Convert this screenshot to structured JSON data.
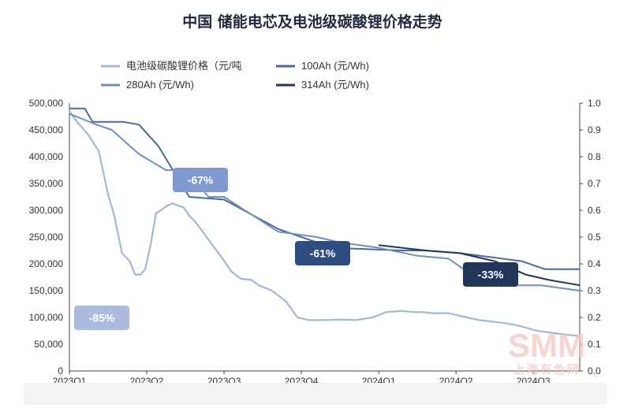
{
  "chart_data": {
    "type": "line",
    "title": "中国 储能电芯及电池级碳酸锂价格走势",
    "categories": [
      "2023Q1",
      "2023Q2",
      "2023Q3",
      "2023Q4",
      "2024Q1",
      "2024Q2",
      "2024Q3"
    ],
    "y_left": {
      "ticks": [
        "500,000",
        "450,000",
        "400,000",
        "350,000",
        "300,000",
        "250,000",
        "200,000",
        "150,000",
        "100,000",
        "50,000",
        "0"
      ],
      "ylim": [
        0,
        500000
      ]
    },
    "y_right": {
      "ticks": [
        "1.0",
        "0.9",
        "0.8",
        "0.7",
        "0.6",
        "0.5",
        "0.4",
        "0.3",
        "0.2",
        "0.1",
        "0.0"
      ],
      "ylim": [
        0,
        1.0
      ]
    },
    "legend_position": "top",
    "series": [
      {
        "name": "电池级碳酸锂价格（元/吨",
        "axis": "left",
        "color": "#a3b6d6",
        "x": [
          0,
          0.1,
          0.25,
          0.38,
          0.5,
          0.58,
          0.68,
          0.78,
          0.85,
          0.92,
          0.98,
          1.05,
          1.12,
          1.18,
          1.28,
          1.34,
          1.42,
          1.48,
          1.55,
          1.62,
          1.75,
          1.85,
          1.98,
          2.1,
          2.22,
          2.35,
          2.45,
          2.62,
          2.8,
          2.95,
          3.1,
          3.3,
          3.5,
          3.7,
          3.92,
          4.1,
          4.3,
          4.45,
          4.55,
          4.7,
          4.9,
          5.05,
          5.3,
          5.6,
          5.8,
          6.05,
          6.3,
          6.6
        ],
        "values": [
          485000,
          465000,
          440000,
          410000,
          330000,
          290000,
          220000,
          205000,
          180000,
          180000,
          190000,
          235000,
          295000,
          300000,
          310000,
          313000,
          308000,
          305000,
          290000,
          280000,
          255000,
          235000,
          210000,
          185000,
          172000,
          170000,
          160000,
          150000,
          130000,
          100000,
          95000,
          95000,
          96000,
          95000,
          100000,
          110000,
          112000,
          110000,
          110000,
          108000,
          108000,
          103000,
          95000,
          90000,
          85000,
          75000,
          70000,
          65000
        ]
      },
      {
        "name": "100Ah (元/Wh)",
        "axis": "right",
        "color": "#4a6a9e",
        "x": [
          0,
          0.2,
          0.3,
          0.7,
          0.9,
          1.15,
          1.55,
          2.0,
          2.7,
          3.4,
          4.3,
          4.6,
          5.05,
          5.85,
          6.15,
          6.6
        ],
        "values": [
          0.98,
          0.98,
          0.93,
          0.93,
          0.92,
          0.84,
          0.65,
          0.64,
          0.53,
          0.46,
          0.45,
          0.45,
          0.44,
          0.41,
          0.38,
          0.38
        ]
      },
      {
        "name": "280Ah (元/Wh)",
        "axis": "right",
        "color": "#6f8fc0",
        "x": [
          0,
          0.35,
          0.55,
          0.9,
          1.25,
          1.5,
          1.8,
          2.0,
          2.7,
          3.2,
          3.5,
          4.0,
          4.5,
          4.9,
          5.1,
          5.6,
          5.8,
          6.1,
          6.6
        ],
        "values": [
          0.96,
          0.92,
          0.9,
          0.81,
          0.75,
          0.75,
          0.65,
          0.65,
          0.52,
          0.5,
          0.48,
          0.46,
          0.43,
          0.42,
          0.38,
          0.38,
          0.32,
          0.32,
          0.3
        ]
      },
      {
        "name": "314Ah (元/Wh)",
        "axis": "right",
        "color": "#1f3559",
        "x": [
          4.0,
          4.3,
          4.6,
          5.05,
          5.5,
          5.9,
          6.2,
          6.6
        ],
        "values": [
          0.47,
          0.46,
          0.45,
          0.44,
          0.41,
          0.36,
          0.34,
          0.32
        ]
      }
    ],
    "annotations": [
      {
        "text": "-85%",
        "bg": "#a9bcdf"
      },
      {
        "text": "-67%",
        "bg": "#7e9ad0"
      },
      {
        "text": "-61%",
        "bg": "#2e4d80"
      },
      {
        "text": "-33%",
        "bg": "#1f3559"
      }
    ]
  },
  "watermark": {
    "brand": "SMM",
    "sub": "上海有色网"
  }
}
